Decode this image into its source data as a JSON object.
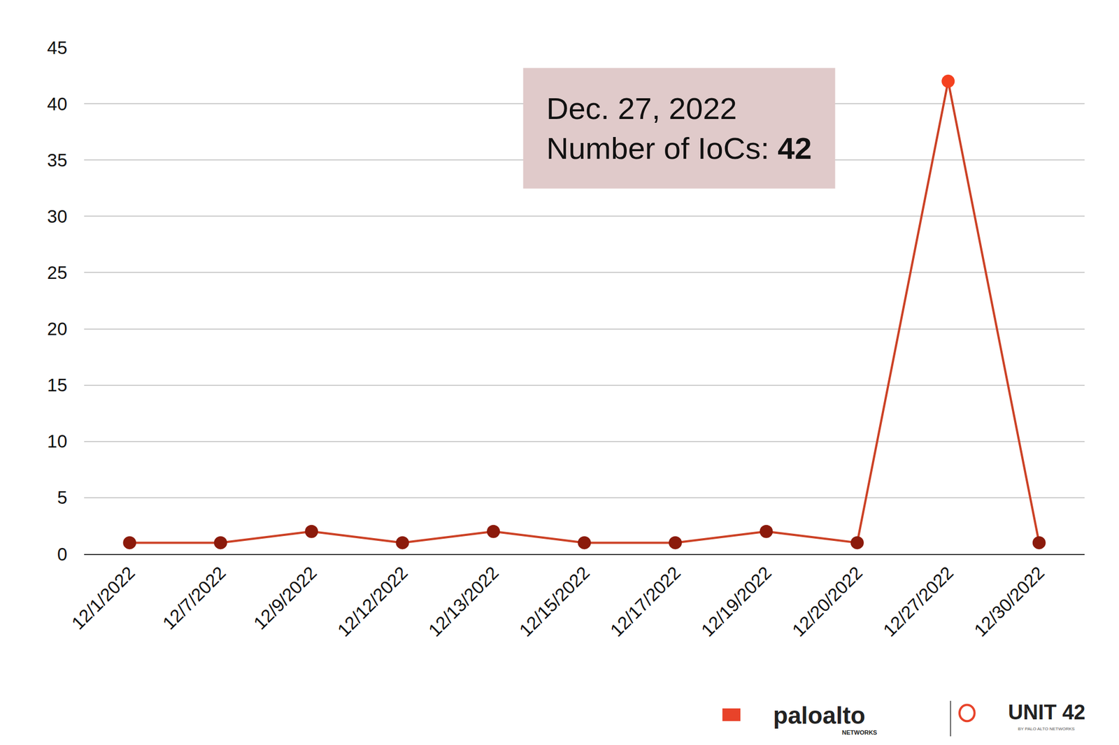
{
  "chart_data": {
    "type": "line",
    "categories": [
      "12/1/2022",
      "12/7/2022",
      "12/9/2022",
      "12/12/2022",
      "12/13/2022",
      "12/15/2022",
      "12/17/2022",
      "12/19/2022",
      "12/20/2022",
      "12/27/2022",
      "12/30/2022"
    ],
    "values": [
      1,
      1,
      2,
      1,
      2,
      1,
      1,
      2,
      1,
      42,
      1
    ],
    "color": "#cc4125",
    "colors": [
      "#8b1a0b",
      "#8b1a0b",
      "#8b1a0b",
      "#8b1a0b",
      "#8b1a0b",
      "#8b1a0b",
      "#8b1a0b",
      "#8b1a0b",
      "#8b1a0b",
      "#f4411f",
      "#8b1a0b"
    ],
    "marker": "circle",
    "ylim": [
      0,
      45
    ],
    "yticks": [
      0,
      5,
      10,
      15,
      20,
      25,
      30,
      35,
      40,
      45
    ],
    "grid": true,
    "annotations": [
      "Dec. 27, 2022",
      "Number of IoCs: 42"
    ],
    "footer": [
      "paloalto",
      "NETWORKS",
      "UNIT 42",
      "BY PALO ALTO NETWORKS"
    ]
  }
}
